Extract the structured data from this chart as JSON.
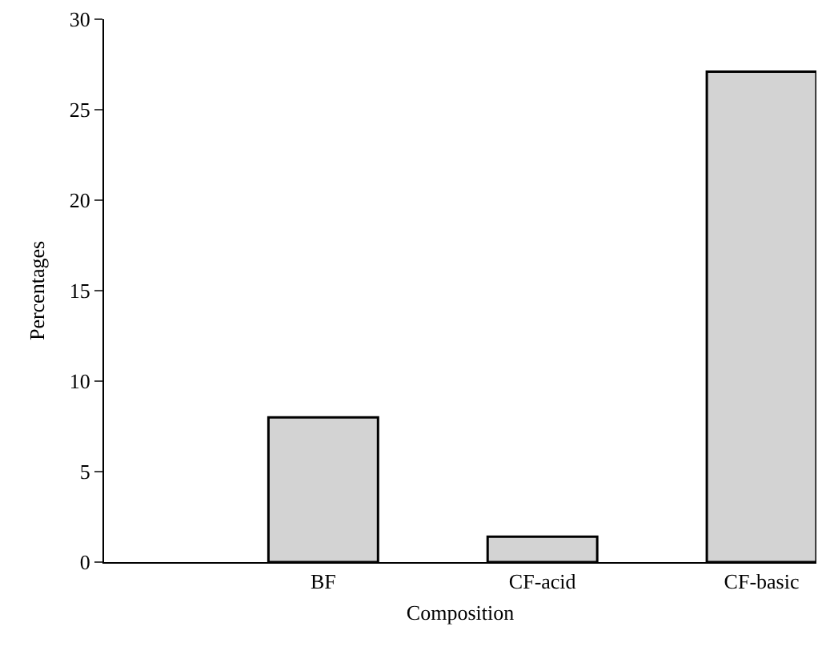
{
  "chart_data": {
    "type": "bar",
    "xlabel": "Composition",
    "ylabel": "Percentages",
    "categories": [
      "BF",
      "CF-acid",
      "CF-basic"
    ],
    "values": [
      8,
      1.4,
      27.1
    ],
    "color": "#d3d3d3",
    "ylim": [
      0,
      30
    ],
    "yticks": [
      0,
      5,
      10,
      15,
      20,
      25,
      30
    ],
    "grid": false,
    "legend": false
  }
}
